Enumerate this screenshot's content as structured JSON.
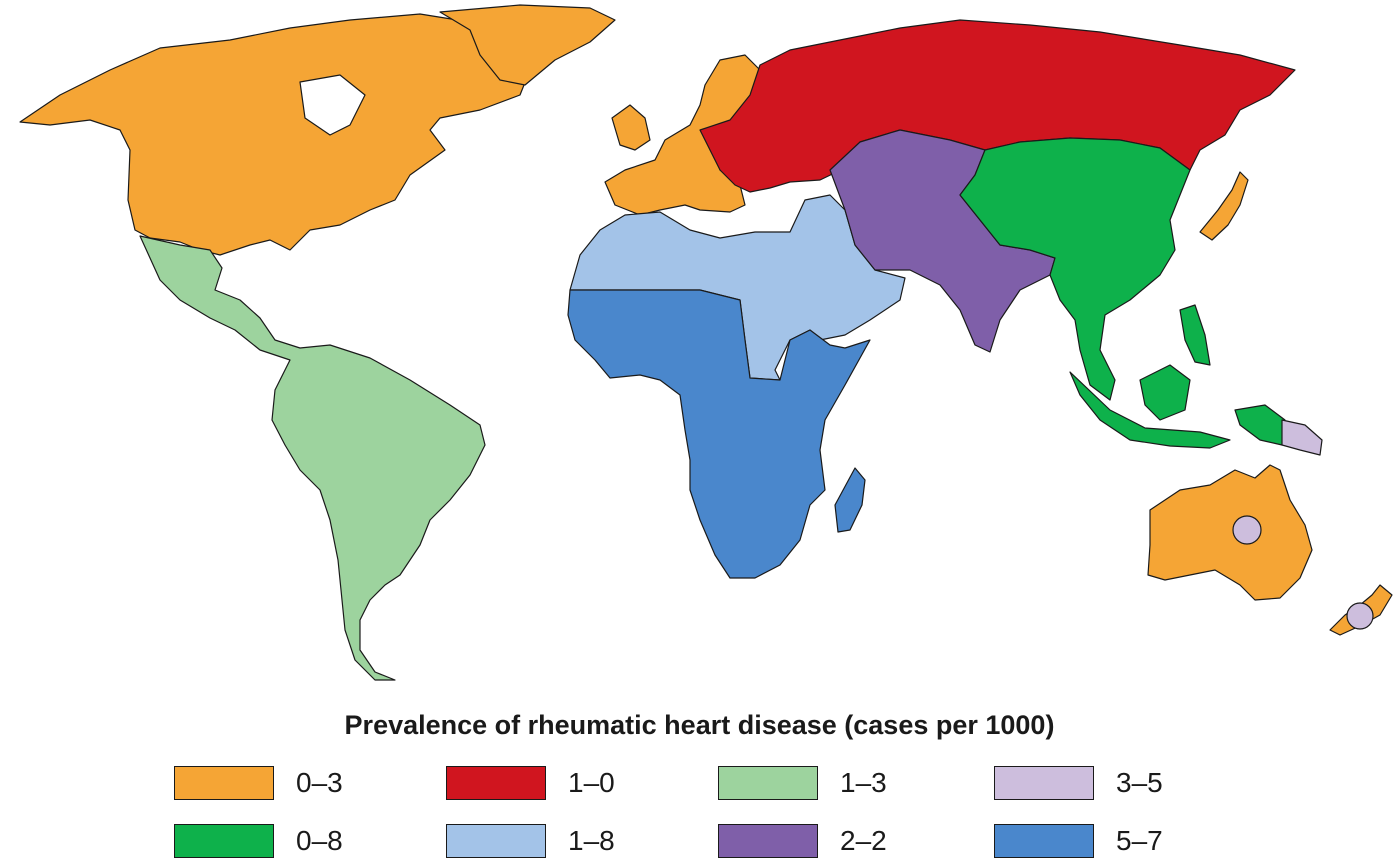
{
  "map": {
    "legend_title": "Prevalence of rheumatic heart disease (cases per 1000)",
    "categories": [
      {
        "id": "cat1",
        "label": "0–3",
        "color": "#f5a535"
      },
      {
        "id": "cat2",
        "label": "1–0",
        "color": "#d0151f"
      },
      {
        "id": "cat3",
        "label": "1–3",
        "color": "#9dd39e"
      },
      {
        "id": "cat4",
        "label": "3–5",
        "color": "#cdbedd"
      },
      {
        "id": "cat5",
        "label": "0–8",
        "color": "#0eb14b"
      },
      {
        "id": "cat6",
        "label": "1–8",
        "color": "#a3c3e8"
      },
      {
        "id": "cat7",
        "label": "2–2",
        "color": "#7f5fa9"
      },
      {
        "id": "cat8",
        "label": "5–7",
        "color": "#4a87cc"
      }
    ],
    "regions": [
      {
        "name": "North America",
        "category": "0–3"
      },
      {
        "name": "Europe",
        "category": "0–3"
      },
      {
        "name": "Japan",
        "category": "0–3"
      },
      {
        "name": "Australia",
        "category": "0–3"
      },
      {
        "name": "New Zealand",
        "category": "0–3"
      },
      {
        "name": "Russia and Eastern Europe",
        "category": "1–0"
      },
      {
        "name": "Latin America",
        "category": "1–3"
      },
      {
        "name": "Pacific (Papua New Guinea)",
        "category": "3–5"
      },
      {
        "name": "Aboriginal Australia",
        "category": "3–5"
      },
      {
        "name": "Maori / Pacific New Zealand",
        "category": "3–5"
      },
      {
        "name": "China and South-East Asia",
        "category": "0–8"
      },
      {
        "name": "North Africa and Middle East",
        "category": "1–8"
      },
      {
        "name": "Central and South Asia",
        "category": "2–2"
      },
      {
        "name": "Sub-Saharan Africa",
        "category": "5–7"
      }
    ]
  }
}
